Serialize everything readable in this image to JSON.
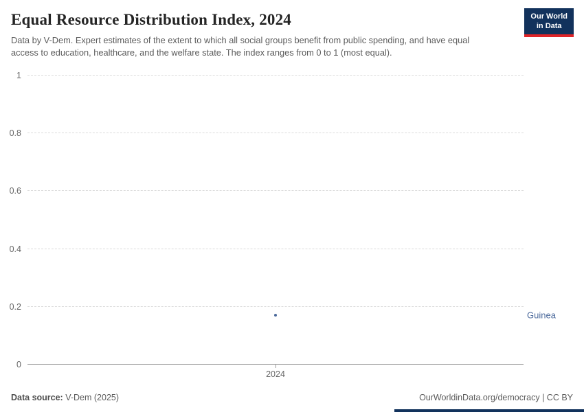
{
  "header": {
    "title": "Equal Resource Distribution Index, 2024",
    "subtitle": "Data by V-Dem. Expert estimates of the extent to which all social groups benefit from public spending, and have equal access to education, healthcare, and the welfare state. The index ranges from 0 to 1 (most equal).",
    "logo": {
      "line1": "Our World",
      "line2": "in Data",
      "bg_color": "#12325c",
      "accent_color": "#e02428"
    }
  },
  "chart_data": {
    "type": "scatter",
    "title": "Equal Resource Distribution Index, 2024",
    "x": [
      2024
    ],
    "xticks": [
      "2024"
    ],
    "series": [
      {
        "name": "Guinea",
        "values": [
          0.17
        ],
        "color": "#4c6a9c"
      }
    ],
    "ylim": [
      0,
      1
    ],
    "ytick_values": [
      0,
      0.2,
      0.4,
      0.6,
      0.8,
      1
    ],
    "yticks": [
      "0",
      "0.2",
      "0.4",
      "0.6",
      "0.8",
      "1"
    ],
    "grid": "dashed-horizontal",
    "legend_position": "right-of-point"
  },
  "footer": {
    "source_label": "Data source:",
    "source_value": "V-Dem (2025)",
    "credit": "OurWorldinData.org/democracy | CC BY"
  }
}
